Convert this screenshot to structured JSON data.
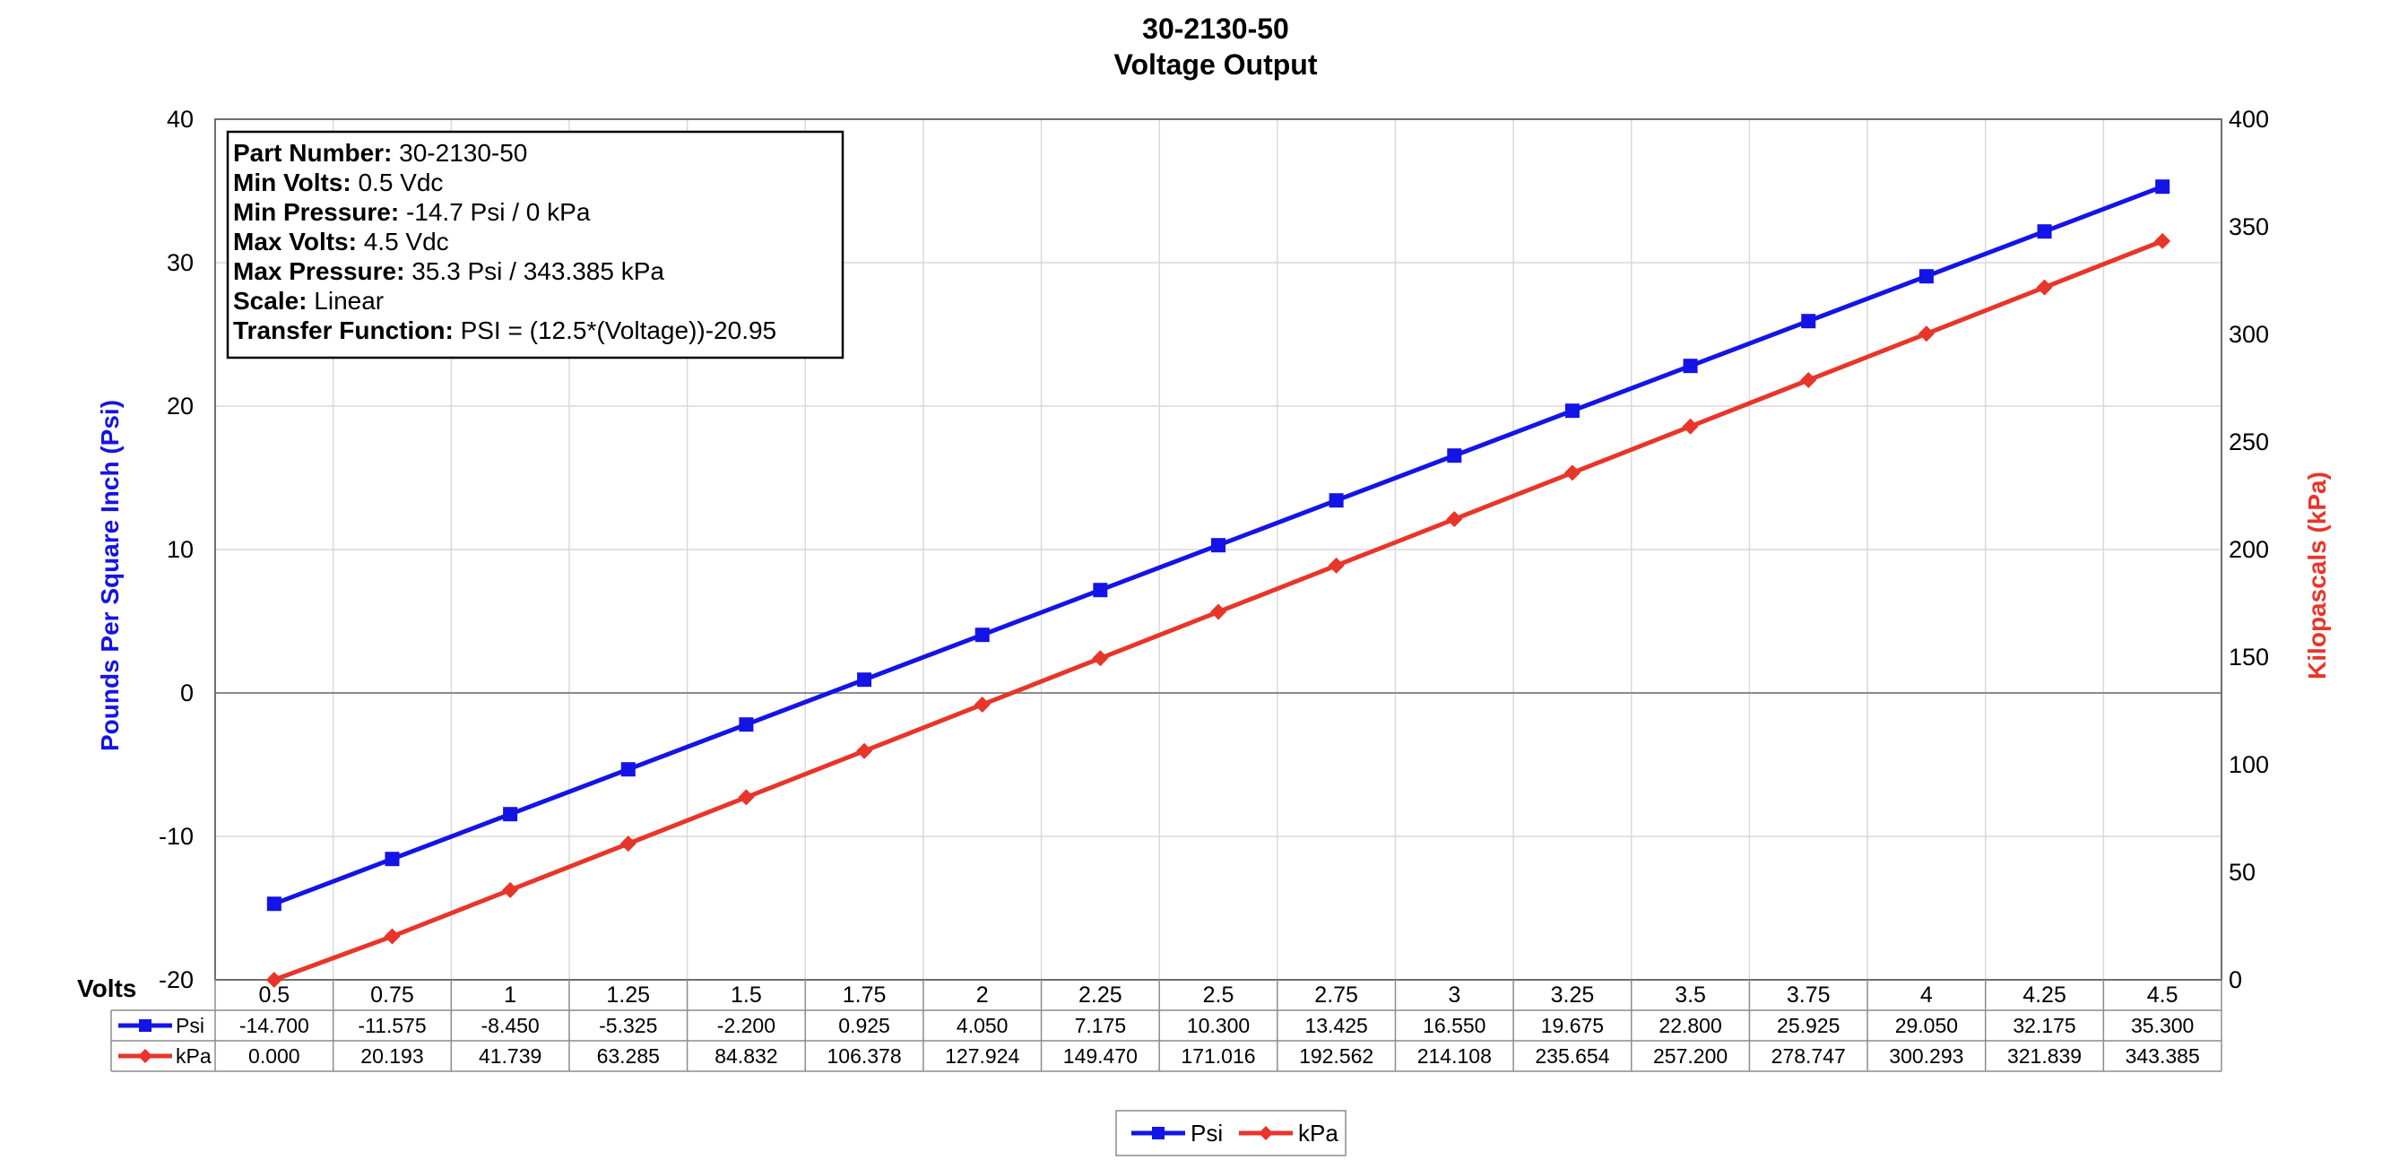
{
  "chart_data": {
    "type": "line",
    "title": [
      "30-2130-50",
      "Voltage Output"
    ],
    "xlabel": "Volts",
    "ylabel_left": "Pounds Per Square Inch (Psi)",
    "ylabel_right": "Kilopascals (kPa)",
    "ylim_left": [
      -20,
      40
    ],
    "ylim_right": [
      0,
      400
    ],
    "yticks_left": [
      "40",
      "30",
      "20",
      "10",
      "0",
      "-10",
      "-20"
    ],
    "yticks_right": [
      "400",
      "350",
      "300",
      "250",
      "200",
      "150",
      "100",
      "50",
      "0"
    ],
    "categories": [
      "0.5",
      "0.75",
      "1",
      "1.25",
      "1.5",
      "1.75",
      "2",
      "2.25",
      "2.5",
      "2.75",
      "3",
      "3.25",
      "3.5",
      "3.75",
      "4",
      "4.25",
      "4.5"
    ],
    "series": [
      {
        "name": "Psi",
        "axis": "left",
        "color": "#1414E6",
        "marker": "square",
        "values": [
          -14.7,
          -11.575,
          -8.45,
          -5.325,
          -2.2,
          0.925,
          4.05,
          7.175,
          10.3,
          13.425,
          16.55,
          19.675,
          22.8,
          25.925,
          29.05,
          32.175,
          35.3
        ],
        "labels": [
          "-14.700",
          "-11.575",
          "-8.450",
          "-5.325",
          "-2.200",
          "0.925",
          "4.050",
          "7.175",
          "10.300",
          "13.425",
          "16.550",
          "19.675",
          "22.800",
          "25.925",
          "29.050",
          "32.175",
          "35.300"
        ]
      },
      {
        "name": "kPa",
        "axis": "right",
        "color": "#E8352A",
        "marker": "diamond",
        "values": [
          0.0,
          20.193,
          41.739,
          63.285,
          84.832,
          106.378,
          127.924,
          149.47,
          171.016,
          192.562,
          214.108,
          235.654,
          257.2,
          278.747,
          300.293,
          321.839,
          343.385
        ],
        "labels": [
          "0.000",
          "20.193",
          "41.739",
          "63.285",
          "84.832",
          "106.378",
          "127.924",
          "149.470",
          "171.016",
          "192.562",
          "214.108",
          "235.654",
          "257.200",
          "278.747",
          "300.293",
          "321.839",
          "343.385"
        ]
      }
    ],
    "info_box": [
      {
        "key": "Part Number:",
        "value": " 30-2130-50"
      },
      {
        "key": "Min Volts:",
        "value": " 0.5 Vdc"
      },
      {
        "key": "Min Pressure:",
        "value": " -14.7 Psi / 0 kPa"
      },
      {
        "key": "Max Volts:",
        "value": " 4.5 Vdc"
      },
      {
        "key": "Max Pressure:",
        "value": " 35.3 Psi / 343.385 kPa"
      },
      {
        "key": "Scale:",
        "value": " Linear"
      },
      {
        "key": "Transfer Function:",
        "value": " PSI = (12.5*(Voltage))-20.95"
      }
    ],
    "legend": [
      "Psi",
      "kPa"
    ],
    "legend_placement": "bottom-center",
    "grid": true
  }
}
